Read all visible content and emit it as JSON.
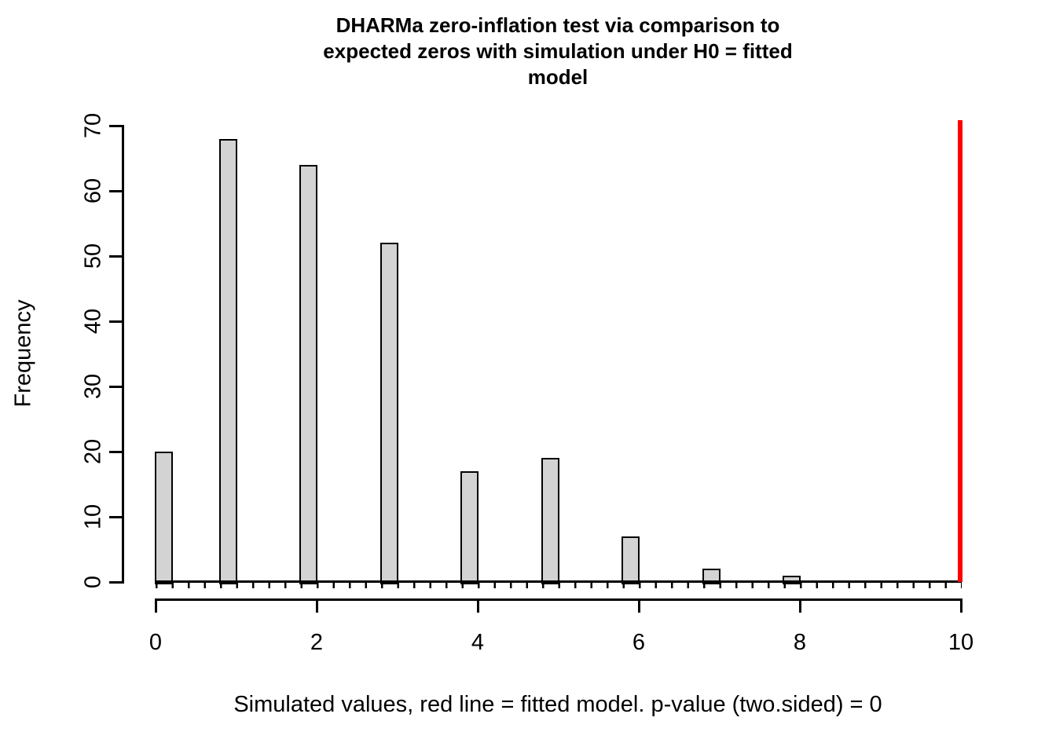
{
  "title": {
    "lines": [
      "DHARMa zero-inflation test via comparison to",
      "expected zeros with simulation under H0 = fitted",
      "model"
    ]
  },
  "chart_data": {
    "type": "bar",
    "subtype": "histogram",
    "title": "DHARMa zero-inflation test via comparison to expected zeros with simulation under H0 = fitted model",
    "xlabel": "Simulated values, red line = fitted model. p-value (two.sided) = 0",
    "ylabel": "Frequency",
    "x": [
      0,
      1,
      2,
      3,
      4,
      5,
      6,
      7,
      8
    ],
    "values": [
      20,
      68,
      64,
      52,
      17,
      19,
      7,
      2,
      1
    ],
    "bin_width": 0.2,
    "xlim": [
      0,
      10
    ],
    "ylim": [
      0,
      70
    ],
    "x_ticks": [
      0,
      2,
      4,
      6,
      8,
      10
    ],
    "y_ticks": [
      0,
      10,
      20,
      30,
      40,
      50,
      60,
      70
    ],
    "red_line_x": 10,
    "grid": false,
    "legend": "none",
    "colors": {
      "bar_fill": "#d3d3d3",
      "bar_border": "#000000",
      "fitted_line": "#ff0000",
      "axis": "#000000",
      "background": "#ffffff"
    }
  }
}
